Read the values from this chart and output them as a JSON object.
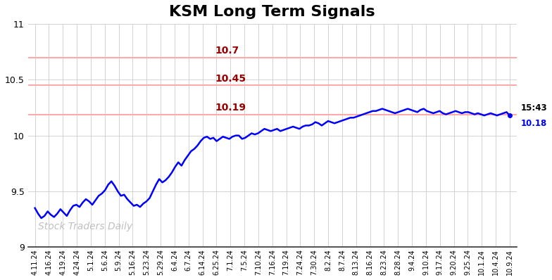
{
  "title": "KSM Long Term Signals",
  "title_fontsize": 16,
  "title_fontweight": "bold",
  "watermark": "Stock Traders Daily",
  "line_color": "blue",
  "line_width": 1.8,
  "background_color": "#ffffff",
  "grid_color": "#cccccc",
  "hlines": [
    10.7,
    10.45,
    10.19
  ],
  "hline_color": "#ffaaaa",
  "hline_labels": [
    "10.7",
    "10.45",
    "10.19"
  ],
  "hline_label_color": "#990000",
  "ylim": [
    9.0,
    11.0
  ],
  "yticks": [
    9.0,
    9.5,
    10.0,
    10.5,
    11.0
  ],
  "annotation_time": "15:43",
  "annotation_price": "10.18",
  "annotation_color_time": "black",
  "annotation_color_price": "blue",
  "x_labels": [
    "4.11.24",
    "4.16.24",
    "4.19.24",
    "4.24.24",
    "5.1.24",
    "5.6.24",
    "5.9.24",
    "5.16.24",
    "5.23.24",
    "5.29.24",
    "6.4.24",
    "6.7.24",
    "6.14.24",
    "6.25.24",
    "7.1.24",
    "7.5.24",
    "7.10.24",
    "7.16.24",
    "7.19.24",
    "7.24.24",
    "7.30.24",
    "8.2.24",
    "8.7.24",
    "8.13.24",
    "8.16.24",
    "8.23.24",
    "8.28.24",
    "9.4.24",
    "9.10.24",
    "9.17.24",
    "9.20.24",
    "9.25.24",
    "10.1.24",
    "10.4.24",
    "10.9.24"
  ],
  "y_values": [
    9.35,
    9.3,
    9.26,
    9.28,
    9.32,
    9.29,
    9.27,
    9.3,
    9.34,
    9.31,
    9.28,
    9.33,
    9.37,
    9.38,
    9.36,
    9.4,
    9.43,
    9.41,
    9.38,
    9.42,
    9.46,
    9.48,
    9.51,
    9.56,
    9.59,
    9.55,
    9.5,
    9.46,
    9.47,
    9.43,
    9.4,
    9.37,
    9.38,
    9.36,
    9.39,
    9.41,
    9.44,
    9.5,
    9.56,
    9.61,
    9.58,
    9.6,
    9.63,
    9.67,
    9.72,
    9.76,
    9.73,
    9.78,
    9.82,
    9.86,
    9.88,
    9.91,
    9.95,
    9.98,
    9.99,
    9.97,
    9.98,
    9.95,
    9.97,
    9.99,
    9.98,
    9.97,
    9.99,
    10.0,
    10.0,
    9.97,
    9.98,
    10.0,
    10.02,
    10.01,
    10.02,
    10.04,
    10.06,
    10.05,
    10.04,
    10.05,
    10.06,
    10.04,
    10.05,
    10.06,
    10.07,
    10.08,
    10.07,
    10.06,
    10.08,
    10.09,
    10.09,
    10.1,
    10.12,
    10.11,
    10.09,
    10.11,
    10.13,
    10.12,
    10.11,
    10.12,
    10.13,
    10.14,
    10.15,
    10.16,
    10.16,
    10.17,
    10.18,
    10.19,
    10.2,
    10.21,
    10.22,
    10.22,
    10.23,
    10.24,
    10.23,
    10.22,
    10.21,
    10.2,
    10.21,
    10.22,
    10.23,
    10.24,
    10.23,
    10.22,
    10.21,
    10.23,
    10.24,
    10.22,
    10.21,
    10.2,
    10.21,
    10.22,
    10.2,
    10.19,
    10.2,
    10.21,
    10.22,
    10.21,
    10.2,
    10.21,
    10.21,
    10.2,
    10.19,
    10.2,
    10.19,
    10.18,
    10.19,
    10.2,
    10.19,
    10.18,
    10.19,
    10.2,
    10.21,
    10.18
  ]
}
